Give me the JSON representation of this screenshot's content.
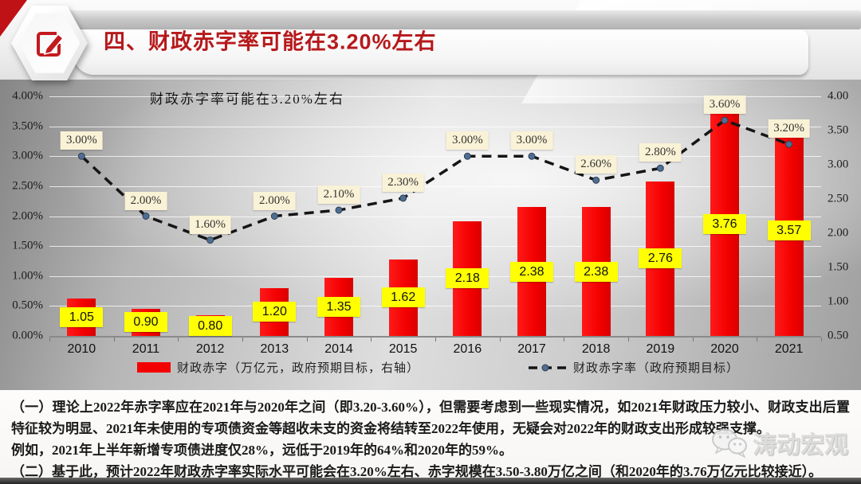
{
  "header": {
    "title": "四、财政赤字率可能在3.20%左右",
    "title_color": "#b6191c",
    "badge_icon": "edit-pencil-icon"
  },
  "chart": {
    "title": "财政赤字率可能在3.20%左右",
    "left_axis_labels": [
      "4.00%",
      "3.50%",
      "3.00%",
      "2.50%",
      "2.00%",
      "1.50%",
      "1.00%",
      "0.50%",
      "0.00%"
    ],
    "right_axis_labels": [
      "4.00",
      "3.50",
      "3.00",
      "2.50",
      "2.00",
      "1.50",
      "1.00",
      "0.50"
    ],
    "legend": [
      {
        "label": "财政赤字（万亿元，政府预期目标，右轴）",
        "swatch": "red-bar"
      },
      {
        "label": "财政赤字率（政府预期目标）",
        "swatch": "dashed-line"
      }
    ],
    "colors": {
      "bar": "#f30000",
      "bar_label_bg": "#ffff00",
      "line": "#151515",
      "line_label_bg": "#faf2d6",
      "marker": "#4f6d92"
    }
  },
  "chart_data": {
    "type": "bar",
    "title": "财政赤字率可能在3.20%左右",
    "categories": [
      "2010",
      "2011",
      "2012",
      "2013",
      "2014",
      "2015",
      "2016",
      "2017",
      "2018",
      "2019",
      "2020",
      "2021"
    ],
    "series": [
      {
        "name": "财政赤字（万亿元，政府预期目标，右轴）",
        "type": "bar",
        "axis": "right",
        "values": [
          1.05,
          0.9,
          0.8,
          1.2,
          1.35,
          1.62,
          2.18,
          2.38,
          2.38,
          2.76,
          3.76,
          3.57
        ],
        "labels": [
          "1.05",
          "0.90",
          "0.80",
          "1.20",
          "1.35",
          "1.62",
          "2.18",
          "2.38",
          "2.38",
          "2.76",
          "3.76",
          "3.57"
        ]
      },
      {
        "name": "财政赤字率（政府预期目标）",
        "type": "line",
        "axis": "left",
        "values": [
          3.0,
          2.0,
          1.6,
          2.0,
          2.1,
          2.3,
          3.0,
          3.0,
          2.6,
          2.8,
          3.6,
          3.2
        ],
        "labels": [
          "3.00%",
          "2.00%",
          "1.60%",
          "2.00%",
          "2.10%",
          "2.30%",
          "3.00%",
          "3.00%",
          "2.60%",
          "2.80%",
          "3.60%",
          "3.20%"
        ]
      }
    ],
    "left_ylim": [
      0,
      4
    ],
    "right_ylim": [
      0.5,
      4
    ],
    "grid": true,
    "legend_position": "bottom"
  },
  "footer": {
    "paragraphs": [
      "（一）理论上2022年赤字率应在2021年与2020年之间（即3.20-3.60%），但需要考虑到一些现实情况，如2021年财政压力较小、财政支出后置特征较为明显、2021年未使用的专项债资金等超收未支的资金将结转至2022年使用，无疑会对2022年的财政支出形成较强支撑。",
      "例如，2021年上半年新增专项债进度仅28%，远低于2019年的64%和2020年的59%。",
      "（二）基于此，预计2022年财政赤字率实际水平可能会在3.20%左右、赤字规模在3.50-3.80万亿之间（和2020年的3.76万亿元比较接近）。"
    ]
  },
  "watermark": {
    "label": "涛动宏观",
    "icon": "wechat-icon"
  }
}
